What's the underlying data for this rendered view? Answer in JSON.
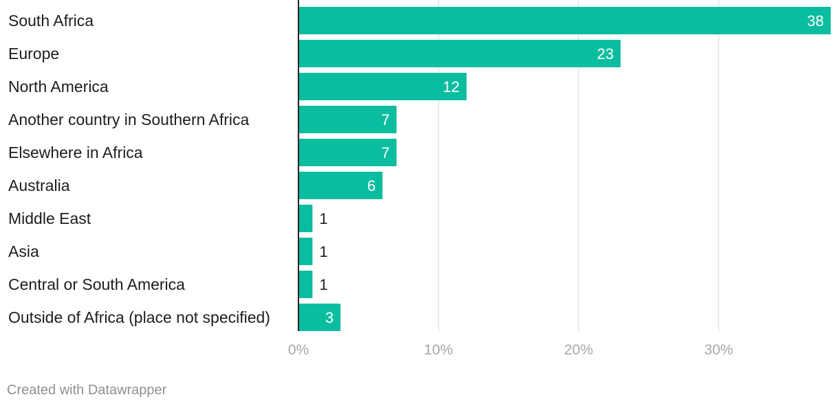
{
  "chart_data": {
    "type": "bar",
    "orientation": "horizontal",
    "categories": [
      "South Africa",
      "Europe",
      "North America",
      "Another country in Southern Africa",
      "Elsewhere in Africa",
      "Australia",
      "Middle East",
      "Asia",
      "Central or South America",
      "Outside of Africa (place not specified)"
    ],
    "values": [
      38,
      23,
      12,
      7,
      7,
      6,
      1,
      1,
      1,
      3
    ],
    "value_labels": [
      "38",
      "23",
      "12",
      "7",
      "7",
      "6",
      "1",
      "1",
      "1",
      "3"
    ],
    "x_ticks": [
      0,
      10,
      20,
      30
    ],
    "x_tick_labels": [
      "0%",
      "10%",
      "20%",
      "30%"
    ],
    "xlim": [
      0,
      38
    ],
    "grid": true,
    "bar_color": "#0abd9f",
    "title": "",
    "xlabel": "",
    "ylabel": ""
  },
  "footer": {
    "credit": "Created with Datawrapper"
  }
}
